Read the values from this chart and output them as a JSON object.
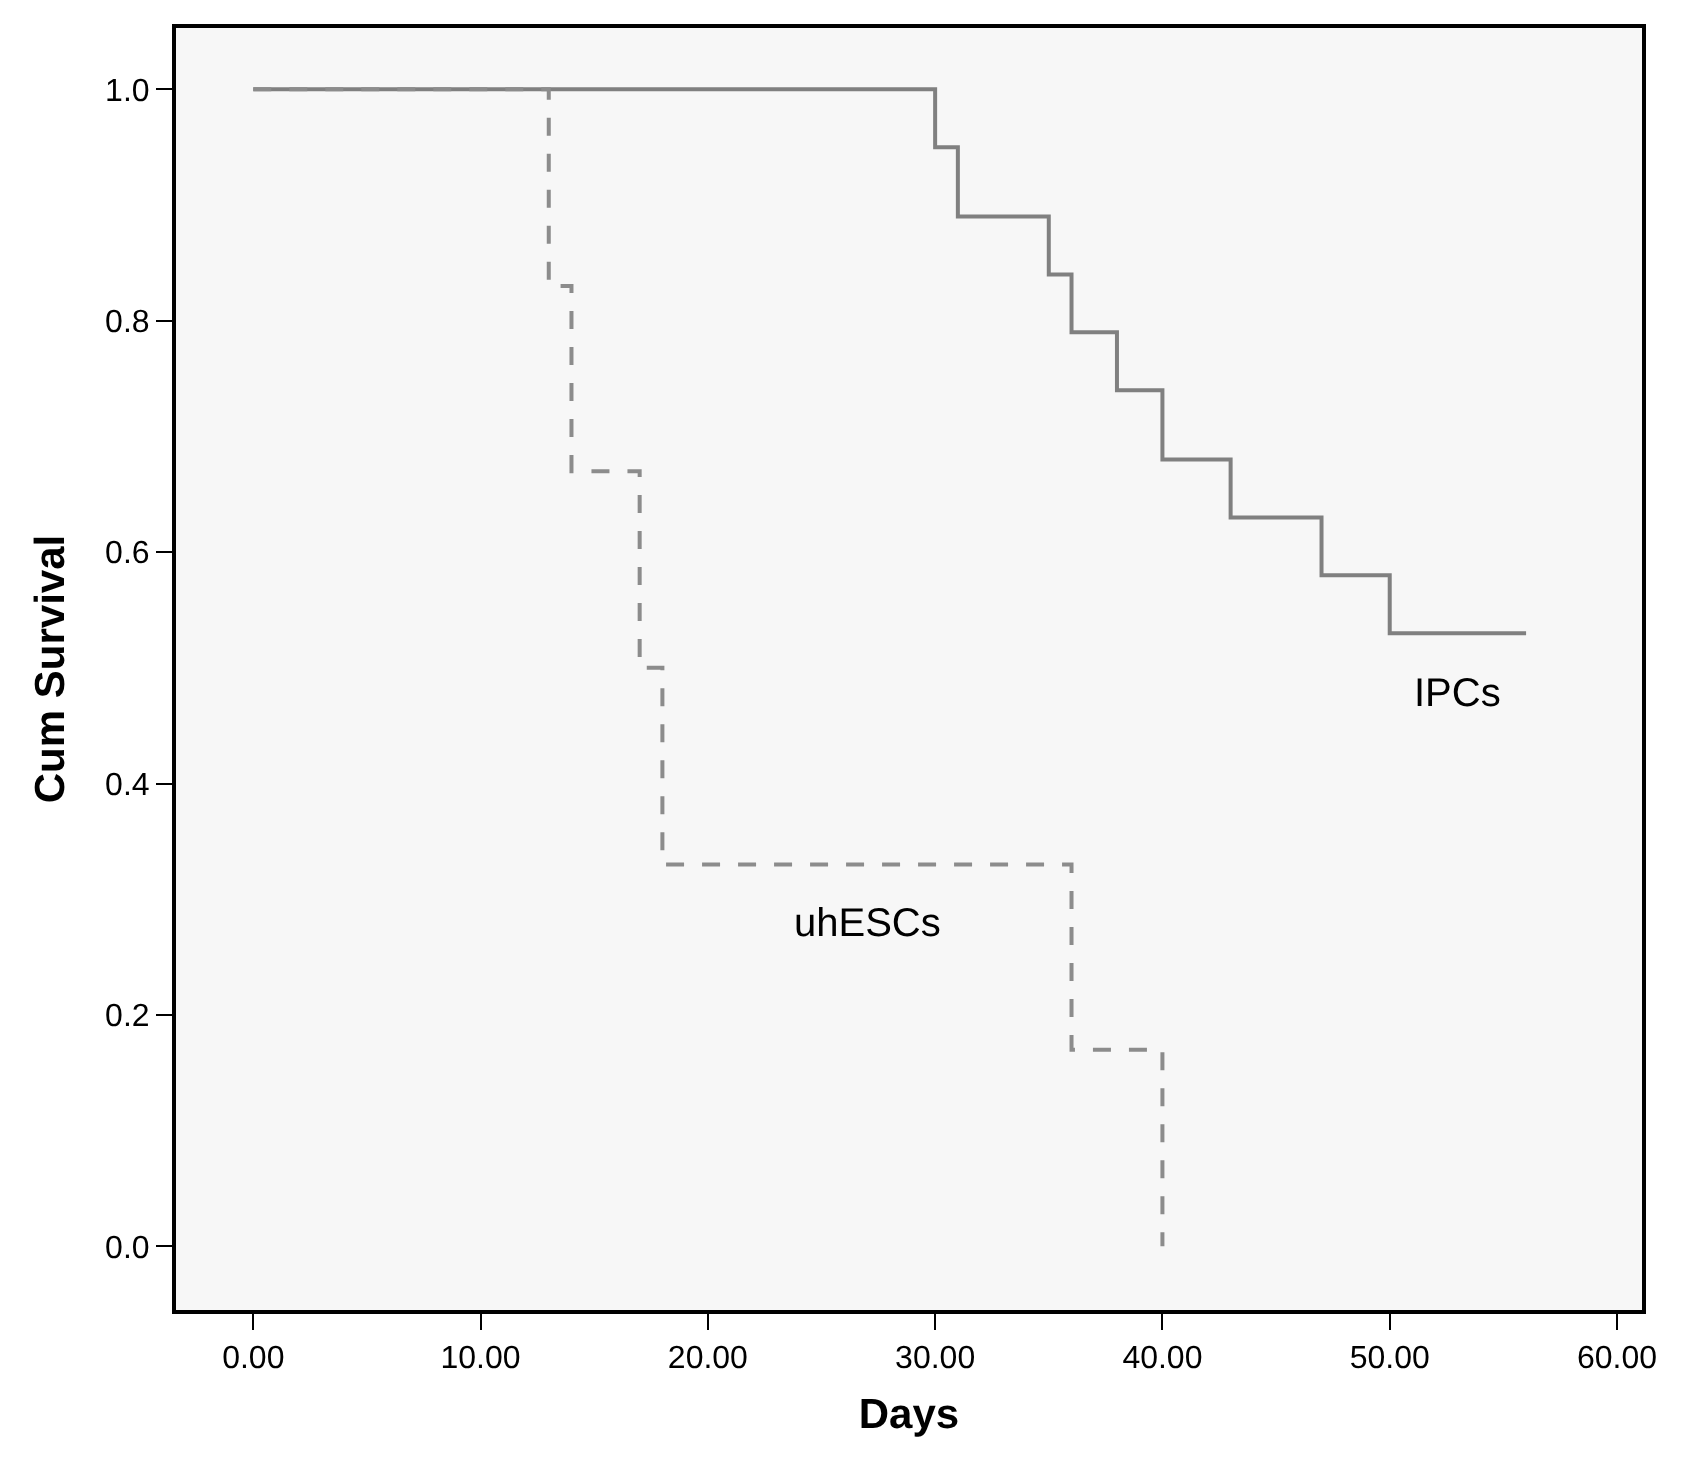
{
  "chart_data": {
    "type": "step",
    "xlabel": "Days",
    "ylabel": "Cum Survival",
    "series": [
      {
        "name": "IPCs",
        "x": [
          0,
          30,
          31,
          35,
          36,
          38,
          40,
          43,
          47,
          50,
          56
        ],
        "values": [
          1.0,
          0.95,
          0.89,
          0.84,
          0.79,
          0.74,
          0.68,
          0.63,
          0.58,
          0.53,
          0.53
        ],
        "color": "#808080",
        "line_style": "solid"
      },
      {
        "name": "uhESCs",
        "x": [
          0,
          13,
          14,
          17,
          18,
          36,
          40
        ],
        "values": [
          1.0,
          0.83,
          0.67,
          0.5,
          0.33,
          0.17,
          0.0
        ],
        "color": "#8c8c8c",
        "line_style": "dashed"
      }
    ],
    "xlim": [
      -3.4,
      61.1
    ],
    "ylim": [
      -0.055,
      1.053
    ],
    "xticks": [
      {
        "value": 0,
        "label": "0.00"
      },
      {
        "value": 10,
        "label": "10.00"
      },
      {
        "value": 20,
        "label": "20.00"
      },
      {
        "value": 30,
        "label": "30.00"
      },
      {
        "value": 40,
        "label": "40.00"
      },
      {
        "value": 50,
        "label": "50.00"
      },
      {
        "value": 60,
        "label": "60.00"
      }
    ],
    "yticks": [
      {
        "value": 0,
        "label": "0.0"
      },
      {
        "value": 0.2,
        "label": "0.2"
      },
      {
        "value": 0.4,
        "label": "0.4"
      },
      {
        "value": 0.6,
        "label": "0.6"
      },
      {
        "value": 0.8,
        "label": "0.8"
      },
      {
        "value": 1.0,
        "label": "1.0"
      }
    ],
    "grid": false,
    "legend": false,
    "marker": "none"
  }
}
